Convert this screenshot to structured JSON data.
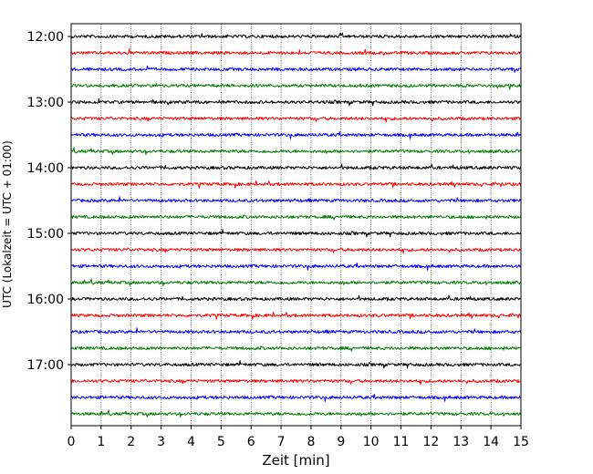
{
  "chart_data": {
    "type": "line",
    "title": "",
    "xlabel": "Zeit  [min]",
    "ylabel": "UTC (Lokalzeit = UTC + 01:00)",
    "xlim": [
      0,
      15
    ],
    "x_ticks": [
      "0",
      "1",
      "2",
      "3",
      "4",
      "5",
      "6",
      "7",
      "8",
      "9",
      "10",
      "11",
      "12",
      "13",
      "14",
      "15"
    ],
    "y_tick_labels": [
      "12:00",
      "13:00",
      "14:00",
      "15:00",
      "16:00",
      "17:00"
    ],
    "trace_start": "12:00",
    "trace_interval_minutes": 15,
    "trace_count": 24,
    "colors": [
      "#000000",
      "#ff0000",
      "#0000ff",
      "#008000"
    ],
    "grid": "vertical dotted lines at each minute"
  }
}
